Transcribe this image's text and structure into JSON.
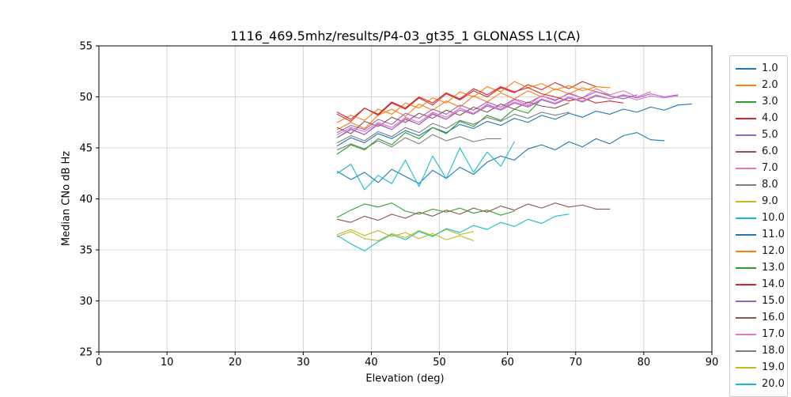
{
  "chart_data": {
    "type": "line",
    "title": "1116_469.5mhz/results/P4-03_gt35_1 GLONASS L1(CA)",
    "xlabel": "Elevation (deg)",
    "ylabel": "Median CNo dB Hz",
    "xlim": [
      0,
      90
    ],
    "ylim": [
      25,
      55
    ],
    "xticks": [
      0,
      10,
      20,
      30,
      40,
      50,
      60,
      70,
      80,
      90
    ],
    "yticks": [
      25,
      30,
      35,
      40,
      45,
      50,
      55
    ],
    "grid": true,
    "grid_color": "#cccccc",
    "spine_color": "#000000",
    "legend_position": "right-outside",
    "series": [
      {
        "name": "1.0",
        "color": "#1f77b4",
        "x_start": 35,
        "x_step": 2,
        "values": [
          42.7,
          41.9,
          42.6,
          41.6,
          42.9,
          42.2,
          41.5,
          42.8,
          42.0,
          43.1,
          42.4,
          43.6,
          44.2,
          43.8,
          44.9,
          45.3,
          44.8,
          45.6,
          45.1,
          45.9,
          45.4,
          46.2,
          46.5,
          45.8,
          45.7
        ]
      },
      {
        "name": "2.0",
        "color": "#ff7f0e",
        "x_start": 35,
        "x_step": 2,
        "values": [
          46.8,
          47.5,
          46.9,
          48.2,
          48.8,
          48.1,
          49.3,
          48.7,
          49.6,
          49.0,
          50.1,
          49.5,
          50.4,
          49.8,
          50.6,
          50.0,
          50.8,
          50.3,
          50.9,
          50.5,
          50.2
        ]
      },
      {
        "name": "3.0",
        "color": "#2ca02c",
        "x_start": 35,
        "x_step": 2,
        "values": [
          38.2,
          38.9,
          39.5,
          39.2,
          39.6,
          38.8,
          38.5,
          39.0,
          38.7,
          39.1,
          38.6,
          38.9,
          38.4,
          38.8
        ]
      },
      {
        "name": "4.0",
        "color": "#d62728",
        "x_start": 35,
        "x_step": 2,
        "values": [
          48.3,
          47.6,
          48.9,
          48.2,
          49.4,
          48.8,
          49.9,
          49.2,
          50.3,
          49.7,
          50.6,
          50.0,
          50.9,
          50.4,
          51.2,
          50.7,
          51.4,
          50.8,
          51.5,
          51.0
        ]
      },
      {
        "name": "5.0",
        "color": "#9467bd",
        "x_start": 35,
        "x_step": 2,
        "values": [
          46.5,
          47.2,
          46.8,
          47.8,
          47.3,
          48.4,
          47.9,
          48.8,
          48.3,
          49.2,
          48.7,
          49.5,
          49.0,
          49.8,
          49.4,
          50.1,
          49.7,
          50.3,
          49.9,
          50.5,
          50.1,
          49.8,
          50.2
        ]
      },
      {
        "name": "6.0",
        "color": "#8c564b",
        "x_start": 35,
        "x_step": 2,
        "values": [
          47.0,
          46.4,
          47.6,
          47.1,
          48.0,
          47.5,
          48.4,
          47.9,
          48.7,
          48.2,
          49.0,
          48.5,
          49.3,
          48.8,
          49.5,
          49.1,
          48.9,
          49.4
        ]
      },
      {
        "name": "7.0",
        "color": "#e377c2",
        "x_start": 35,
        "x_step": 2,
        "values": [
          46.0,
          46.9,
          46.3,
          47.4,
          46.8,
          47.9,
          47.3,
          48.4,
          47.8,
          48.9,
          48.3,
          49.3,
          48.8,
          49.7,
          49.2,
          50.1,
          49.6,
          50.4,
          49.9,
          50.8,
          50.2,
          50.6,
          50.0,
          50.5
        ]
      },
      {
        "name": "8.0",
        "color": "#7f7f7f",
        "x_start": 35,
        "x_step": 2,
        "values": [
          44.8,
          45.4,
          44.9,
          45.7,
          45.1,
          46.0,
          45.4,
          46.3,
          45.7,
          46.1,
          45.6,
          45.9,
          45.9
        ]
      },
      {
        "name": "9.0",
        "color": "#bcbd22",
        "x_start": 35,
        "x_step": 2,
        "values": [
          36.3,
          36.8,
          36.1,
          35.9,
          36.6,
          36.2,
          36.9,
          36.4,
          37.0,
          36.5,
          36.8
        ]
      },
      {
        "name": "10.0",
        "color": "#17becf",
        "x_start": 35,
        "x_step": 2,
        "values": [
          36.4,
          35.6,
          34.9,
          35.8,
          36.5,
          36.0,
          36.8,
          36.3,
          37.1,
          36.7,
          37.4,
          37.0,
          37.7,
          37.3,
          38.0,
          37.6,
          38.3,
          38.5
        ]
      },
      {
        "name": "11.0",
        "color": "#1f77b4",
        "x_start": 35,
        "x_step": 2,
        "values": [
          45.2,
          46.0,
          45.5,
          46.4,
          45.9,
          46.7,
          46.2,
          47.0,
          46.5,
          47.3,
          46.9,
          47.6,
          47.2,
          47.9,
          47.5,
          48.2,
          47.8,
          48.4,
          48.0,
          48.6,
          48.3,
          48.8,
          48.5,
          49.0,
          48.7,
          49.2,
          49.3
        ]
      },
      {
        "name": "12.0",
        "color": "#ff7f0e",
        "x_start": 35,
        "x_step": 2,
        "values": [
          47.5,
          48.2,
          47.7,
          48.8,
          48.3,
          49.4,
          48.9,
          49.9,
          49.4,
          50.5,
          50.0,
          51.0,
          50.5,
          51.5,
          50.9,
          51.3,
          50.7,
          51.1,
          50.6,
          51.0,
          50.9
        ]
      },
      {
        "name": "13.0",
        "color": "#2ca02c",
        "x_start": 35,
        "x_step": 2,
        "values": [
          44.4,
          45.3,
          44.8,
          45.9,
          45.3,
          46.5,
          45.9,
          47.0,
          46.4,
          47.6,
          47.1,
          48.2,
          47.7,
          48.8,
          48.4,
          49.8
        ]
      },
      {
        "name": "14.0",
        "color": "#d62728",
        "x_start": 35,
        "x_step": 2,
        "values": [
          48.5,
          47.8,
          48.9,
          48.3,
          49.5,
          48.9,
          50.0,
          49.4,
          50.4,
          49.8,
          50.8,
          50.2,
          51.0,
          50.5,
          50.9,
          50.3,
          50.0,
          49.6,
          49.9,
          49.4,
          49.6,
          49.4
        ]
      },
      {
        "name": "15.0",
        "color": "#9467bd",
        "x_start": 35,
        "x_step": 2,
        "values": [
          46.0,
          46.8,
          46.3,
          47.3,
          46.8,
          47.8,
          47.3,
          48.3,
          47.8,
          48.7,
          48.3,
          49.1,
          48.7,
          49.4,
          49.0,
          49.7,
          49.3,
          49.9,
          49.5,
          50.1,
          49.8,
          50.2,
          49.9,
          50.3,
          50.0,
          50.2
        ]
      },
      {
        "name": "16.0",
        "color": "#8c564b",
        "x_start": 35,
        "x_step": 2,
        "values": [
          38.0,
          37.7,
          38.3,
          37.9,
          38.5,
          38.1,
          38.7,
          38.3,
          38.9,
          38.5,
          39.1,
          38.7,
          39.3,
          38.9,
          39.5,
          39.1,
          39.6,
          39.2,
          39.4,
          39.0,
          39.0
        ]
      },
      {
        "name": "17.0",
        "color": "#e377c2",
        "x_start": 35,
        "x_step": 2,
        "values": [
          46.3,
          47.0,
          46.6,
          47.5,
          47.0,
          48.0,
          47.5,
          48.5,
          48.0,
          48.9,
          48.4,
          49.2,
          48.8,
          49.5,
          49.1,
          49.8,
          49.4,
          50.0,
          49.6,
          50.2,
          49.8,
          50.1,
          49.7,
          50.1,
          49.9,
          50.1
        ]
      },
      {
        "name": "18.0",
        "color": "#7f7f7f",
        "x_start": 35,
        "x_step": 2,
        "values": [
          45.5,
          46.2,
          45.7,
          46.6,
          46.1,
          47.0,
          46.5,
          47.4,
          46.9,
          47.7,
          47.3,
          48.0,
          47.6,
          48.3,
          47.9,
          48.5,
          48.2,
          48.5
        ]
      },
      {
        "name": "19.0",
        "color": "#bcbd22",
        "x_start": 35,
        "x_step": 2,
        "values": [
          36.5,
          37.0,
          36.4,
          36.9,
          36.3,
          36.7,
          36.1,
          36.6,
          36.0,
          36.4,
          35.9
        ]
      },
      {
        "name": "20.0",
        "color": "#17becf",
        "x_start": 35,
        "x_step": 2,
        "values": [
          42.5,
          43.4,
          40.9,
          42.3,
          41.5,
          43.8,
          41.2,
          44.2,
          42.0,
          45.0,
          42.6,
          44.6,
          43.2,
          45.6
        ]
      }
    ]
  }
}
